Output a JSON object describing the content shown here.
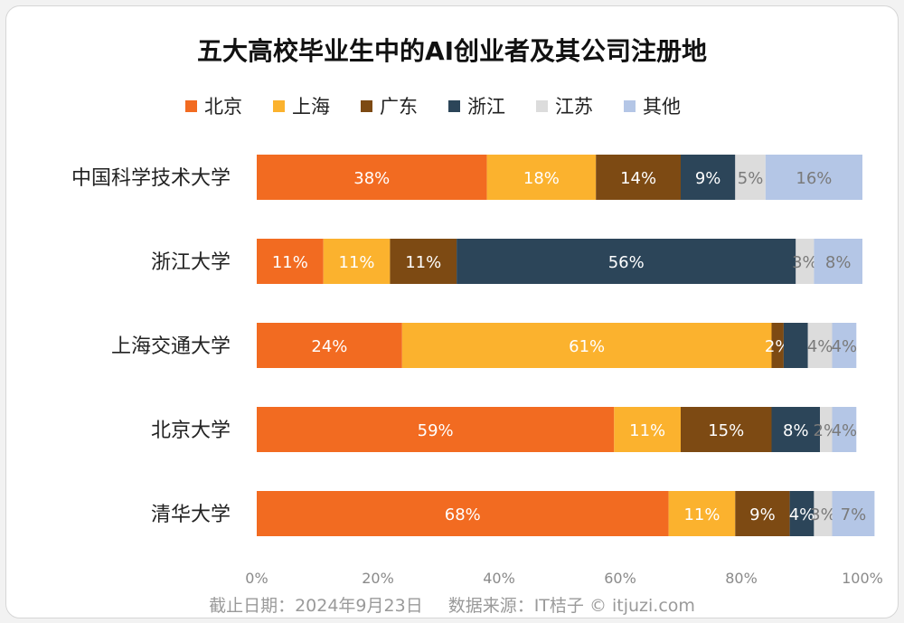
{
  "chart_data": {
    "type": "bar",
    "orientation": "horizontal",
    "stacked": true,
    "title": "五大高校毕业生中的AI创业者及其公司注册地",
    "categories": [
      "中国科学技术大学",
      "浙江大学",
      "上海交通大学",
      "北京大学",
      "清华大学"
    ],
    "series": [
      {
        "name": "北京",
        "color": "#f26b21",
        "values": [
          38,
          11,
          24,
          59,
          68
        ],
        "labels": [
          "38%",
          "11%",
          "24%",
          "59%",
          "68%"
        ]
      },
      {
        "name": "上海",
        "color": "#fbb22e",
        "values": [
          18,
          11,
          61,
          11,
          11
        ],
        "labels": [
          "18%",
          "11%",
          "61%",
          "11%",
          "11%"
        ]
      },
      {
        "name": "广东",
        "color": "#7d4a13",
        "values": [
          14,
          11,
          2,
          15,
          9
        ],
        "labels": [
          "14%",
          "11%",
          "2%",
          "15%",
          "9%"
        ]
      },
      {
        "name": "浙江",
        "color": "#2c4559",
        "values": [
          9,
          56,
          4,
          8,
          4
        ],
        "labels": [
          "9%",
          "56%",
          "",
          "8%",
          "4%"
        ]
      },
      {
        "name": "江苏",
        "color": "#dcdcdc",
        "values": [
          5,
          3,
          4,
          2,
          3
        ],
        "labels": [
          "5%",
          "3%",
          "4%",
          "2%",
          "3%"
        ]
      },
      {
        "name": "其他",
        "color": "#b4c6e6",
        "values": [
          16,
          8,
          4,
          4,
          7
        ],
        "labels": [
          "16%",
          "8%",
          "4%",
          "4%",
          "7%"
        ]
      }
    ],
    "xlim": [
      0,
      100
    ],
    "x_ticks": [
      "0%",
      "20%",
      "40%",
      "60%",
      "80%",
      "100%"
    ],
    "legend_position": "top",
    "grid": false
  },
  "footer": {
    "date": "截止日期：2024年9月23日",
    "source": "数据来源：IT桔子 © itjuzi.com"
  }
}
